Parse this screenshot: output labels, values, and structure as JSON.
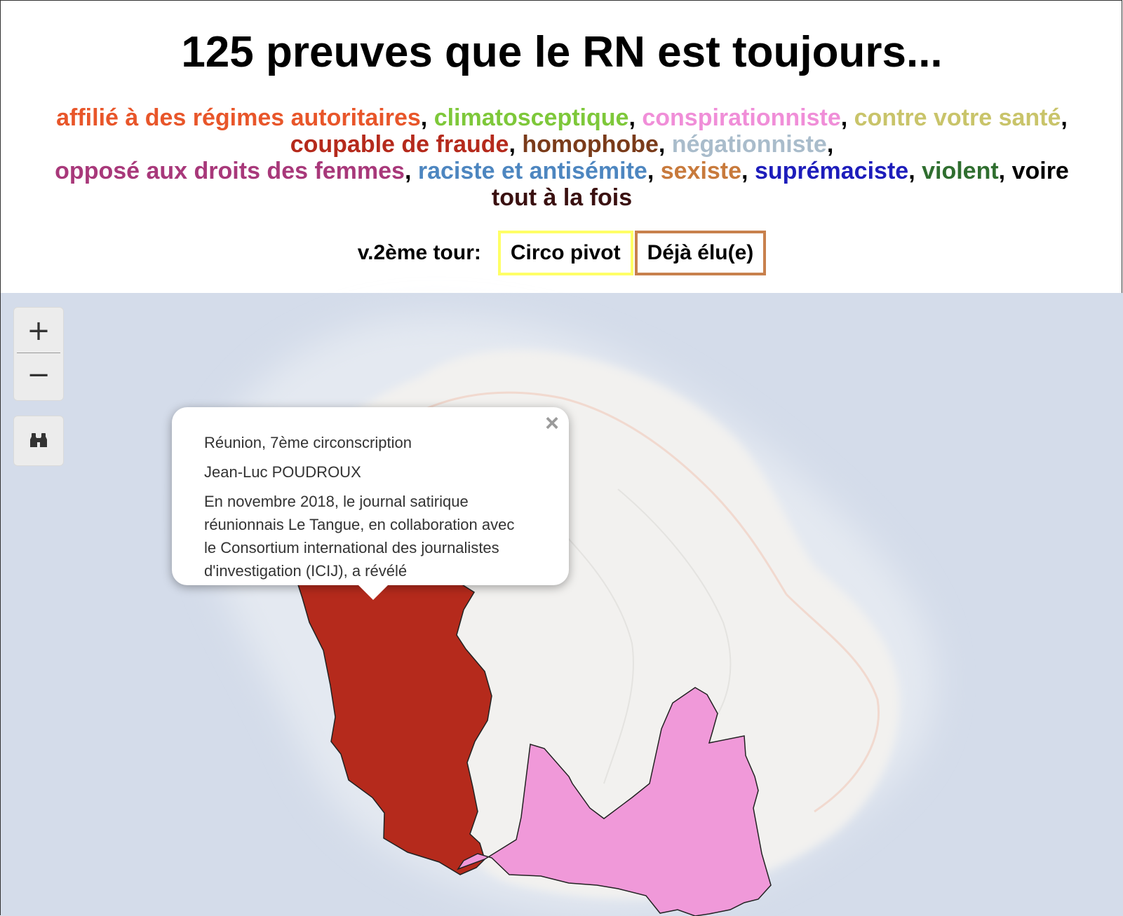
{
  "header": {
    "title": "125 preuves que le RN est toujours..."
  },
  "tags": {
    "items": [
      {
        "label": "affilié à des régimes autoritaires",
        "color": "#e8562a"
      },
      {
        "label": "climatosceptique",
        "color": "#7ec83a"
      },
      {
        "label": "conspirationniste",
        "color": "#f08ed8"
      },
      {
        "label": "contre votre santé",
        "color": "#c9c46a"
      },
      {
        "label": "coupable de fraude",
        "color": "#b52a1c"
      },
      {
        "label": "homophobe",
        "color": "#7a3b1a"
      },
      {
        "label": "négationniste",
        "color": "#a9bccb"
      },
      {
        "label": "opposé aux droits des femmes",
        "color": "#a8387a"
      },
      {
        "label": "raciste et antisémite",
        "color": "#4d86c0"
      },
      {
        "label": "sexiste",
        "color": "#c87a3c"
      },
      {
        "label": "suprémaciste",
        "color": "#1d1dbb"
      },
      {
        "label": "violent",
        "color": "#2f6e2f"
      },
      {
        "label": "tout à la fois",
        "color": "#3a1010"
      }
    ],
    "separator": ", ",
    "conjunction": "voire"
  },
  "round_filter": {
    "label": "v.2ème tour:",
    "buttons": [
      {
        "label": "Circo pivot",
        "border_color": "#ffff66"
      },
      {
        "label": "Déjà élu(e)",
        "border_color": "#c8814d"
      }
    ]
  },
  "map": {
    "zoom_in_label": "+",
    "zoom_out_label": "−",
    "locate_icon": "binoculars-icon",
    "colors": {
      "sea": "#d4dcea",
      "land": "#f2f1ef",
      "district_fraud": "#b52a1c",
      "district_conspiracy": "#f099d9"
    },
    "popup": {
      "close_label": "×",
      "location": "Réunion, 7ème circonscription",
      "candidate": "Jean-Luc POUDROUX",
      "text": "En novembre 2018, le journal satirique réunionnais Le Tangue, en collaboration avec le Consortium international des journalistes d'investigation (ICIJ), a révélé"
    }
  }
}
